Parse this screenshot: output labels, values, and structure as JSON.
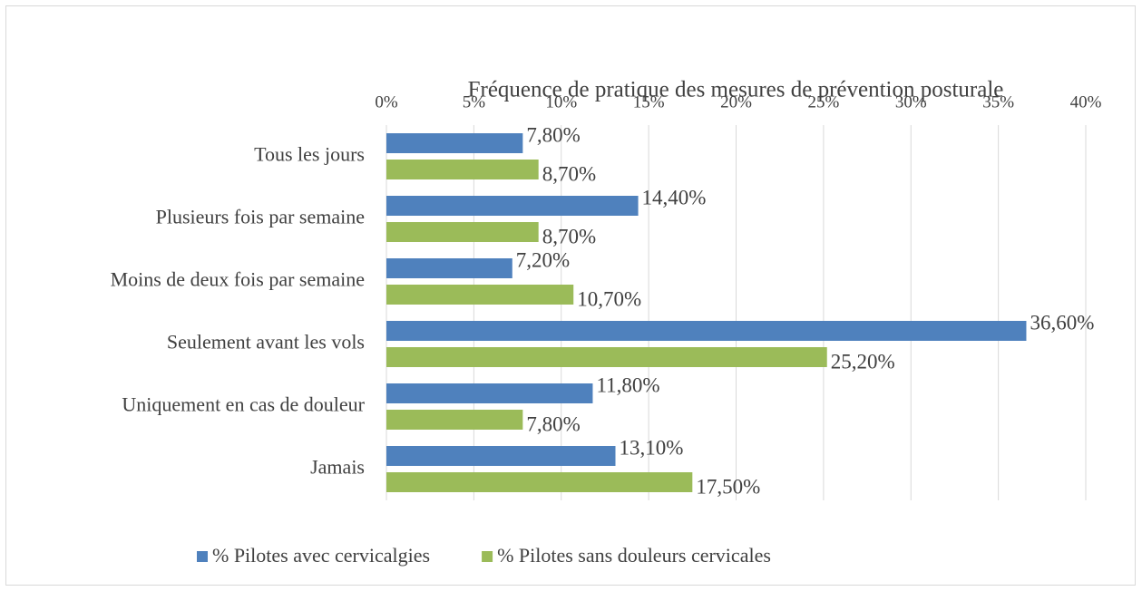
{
  "chart_data": {
    "type": "hbar",
    "title": "Fréquence de pratique des mesures de prévention posturale",
    "categories": [
      "Tous les jours",
      "Plusieurs fois par semaine",
      "Moins de deux fois par semaine",
      "Seulement avant les vols",
      "Uniquement en cas de douleur",
      "Jamais"
    ],
    "series": [
      {
        "name": "% Pilotes avec cervicalgies",
        "color": "#4f81bd",
        "values": [
          7.8,
          14.4,
          7.2,
          36.6,
          11.8,
          13.1
        ],
        "value_labels": [
          "7,80%",
          "14,40%",
          "7,20%",
          "36,60%",
          "11,80%",
          "13,10%"
        ]
      },
      {
        "name": "% Pilotes sans douleurs cervicales",
        "color": "#9bbb59",
        "values": [
          8.7,
          8.7,
          10.7,
          25.2,
          7.8,
          17.5
        ],
        "value_labels": [
          "8,70%",
          "8,70%",
          "10,70%",
          "25,20%",
          "7,80%",
          "17,50%"
        ]
      }
    ],
    "xlim": [
      0,
      40
    ],
    "xticks": [
      {
        "value": 0,
        "label": "0%"
      },
      {
        "value": 5,
        "label": "5%"
      },
      {
        "value": 10,
        "label": "10%"
      },
      {
        "value": 15,
        "label": "15%"
      },
      {
        "value": 20,
        "label": "20%"
      },
      {
        "value": 25,
        "label": "25%"
      },
      {
        "value": 30,
        "label": "30%"
      },
      {
        "value": 35,
        "label": "35%"
      },
      {
        "value": 40,
        "label": "40%"
      }
    ],
    "grid": true,
    "legend": "bottom"
  }
}
